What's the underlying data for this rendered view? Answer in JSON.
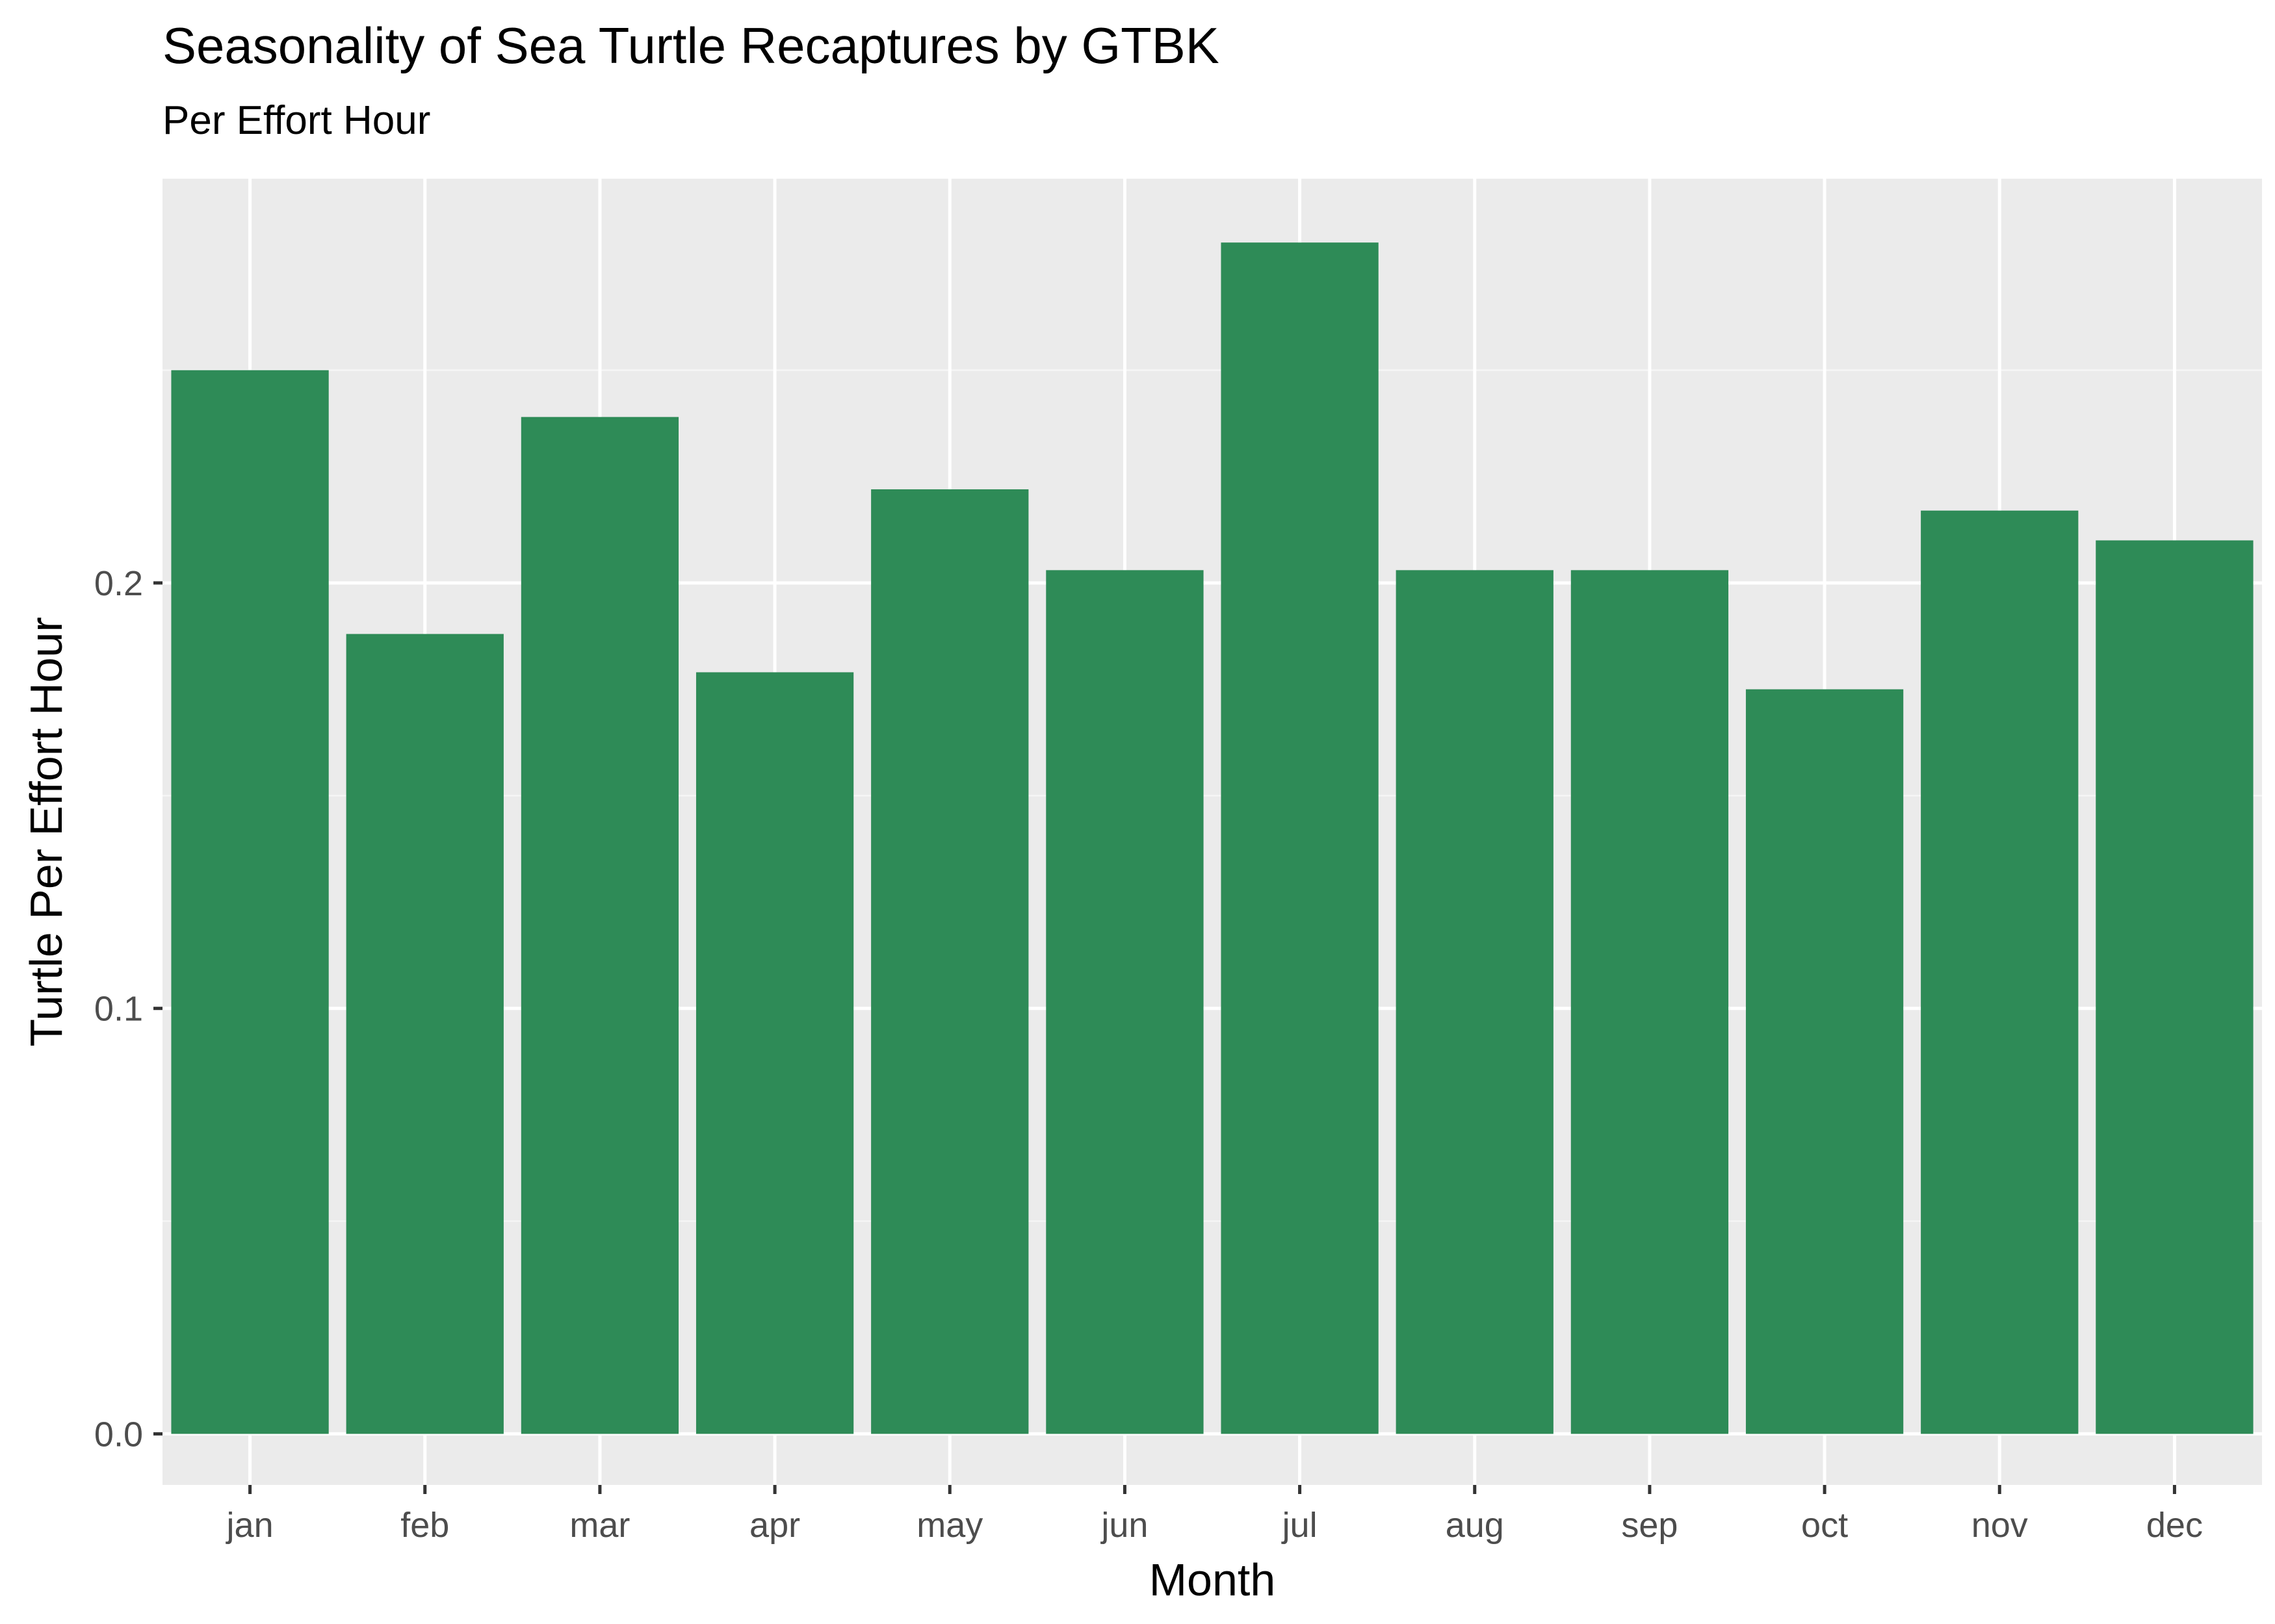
{
  "chart_data": {
    "type": "bar",
    "title": "Seasonality of Sea Turtle Recaptures by GTBK",
    "subtitle": "Per Effort Hour",
    "xlabel": "Month",
    "ylabel": "Turtle Per Effort Hour",
    "categories": [
      "jan",
      "feb",
      "mar",
      "apr",
      "may",
      "jun",
      "jul",
      "aug",
      "sep",
      "oct",
      "nov",
      "dec"
    ],
    "values": [
      0.25,
      0.188,
      0.239,
      0.179,
      0.222,
      0.203,
      0.28,
      0.203,
      0.203,
      0.175,
      0.217,
      0.21
    ],
    "yticks": [
      0.0,
      0.1,
      0.2
    ],
    "ytick_labels": [
      "0.0",
      "0.1",
      "0.2"
    ],
    "ylim": [
      -0.012,
      0.295
    ],
    "grid": true,
    "colors": {
      "bar": "#2e8b57",
      "panel": "#ebebeb",
      "grid_major": "#ffffff",
      "grid_minor": "#f5f5f5",
      "tick_text": "#4d4d4d",
      "axis_title": "#000000"
    }
  }
}
